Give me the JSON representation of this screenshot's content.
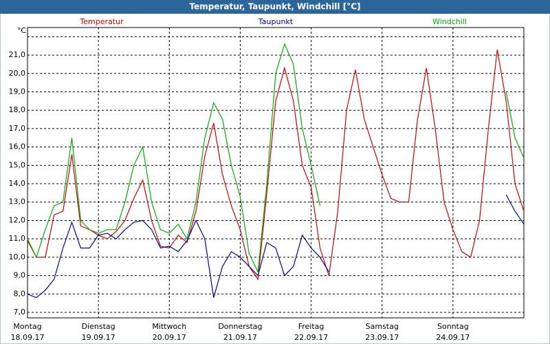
{
  "chart_data": {
    "type": "line",
    "title": "Temperatur, Taupunkt, Windchill [°C]",
    "y_unit": "°C",
    "x": [
      0,
      3,
      6,
      9,
      12,
      15,
      18,
      21,
      24,
      27,
      30,
      33,
      36,
      39,
      42,
      45,
      48,
      51,
      54,
      57,
      60,
      63,
      66,
      69,
      72,
      75,
      78,
      81,
      84,
      87,
      90,
      93,
      96,
      99,
      102,
      105,
      108,
      111,
      114,
      117,
      120,
      123,
      126,
      129,
      132,
      135,
      138,
      141,
      144,
      147,
      150,
      153,
      156,
      159,
      162,
      165,
      168
    ],
    "xlim": [
      0,
      168
    ],
    "xticks": [
      {
        "value": 0,
        "label": "Montag",
        "date": "18.09.17"
      },
      {
        "value": 24,
        "label": "Dienstag",
        "date": "19.09.17"
      },
      {
        "value": 48,
        "label": "Mittwoch",
        "date": "20.09.17"
      },
      {
        "value": 72,
        "label": "Donnerstag",
        "date": "21.09.17"
      },
      {
        "value": 96,
        "label": "Freitag",
        "date": "22.09.17"
      },
      {
        "value": 120,
        "label": "Samstag",
        "date": "23.09.17"
      },
      {
        "value": 144,
        "label": "Sonntag",
        "date": "24.09.17"
      }
    ],
    "ylim": [
      6.7,
      22.5
    ],
    "yticks": [
      {
        "value": 7,
        "label": "7,0"
      },
      {
        "value": 8,
        "label": "8,0"
      },
      {
        "value": 9,
        "label": "9,0"
      },
      {
        "value": 10,
        "label": "10,0"
      },
      {
        "value": 11,
        "label": "11,0"
      },
      {
        "value": 12,
        "label": "12,0"
      },
      {
        "value": 13,
        "label": "13,0"
      },
      {
        "value": 14,
        "label": "14,0"
      },
      {
        "value": 15,
        "label": "15,0"
      },
      {
        "value": 16,
        "label": "16,0"
      },
      {
        "value": 17,
        "label": "17,0"
      },
      {
        "value": 18,
        "label": "18,0"
      },
      {
        "value": 19,
        "label": "19,0"
      },
      {
        "value": 20,
        "label": "20,0"
      },
      {
        "value": 21,
        "label": "21,0"
      },
      {
        "value": 22,
        "label": ""
      }
    ],
    "grid": true,
    "series": [
      {
        "name": "Temperatur",
        "color": "#d00000",
        "values": [
          10.9,
          10.0,
          10.0,
          12.3,
          12.5,
          15.6,
          11.7,
          11.5,
          11.2,
          11.0,
          11.4,
          12.0,
          13.2,
          14.2,
          12.0,
          10.6,
          10.5,
          11.2,
          10.8,
          12.5,
          15.5,
          17.3,
          14.5,
          12.8,
          11.5,
          9.5,
          8.8,
          13.5,
          18.5,
          20.3,
          18.5,
          15.0,
          13.8,
          10.5,
          9.0,
          12.5,
          18.0,
          20.2,
          17.5,
          16.0,
          14.5,
          13.2,
          13.0,
          13.0,
          17.5,
          20.3,
          17.0,
          13.0,
          11.5,
          10.3,
          10.0,
          12.0,
          17.0,
          21.3,
          18.5,
          14.0,
          12.5
        ]
      },
      {
        "name": "Taupunkt",
        "color": "#0000a0",
        "values": [
          8.0,
          7.8,
          8.2,
          8.8,
          10.5,
          11.9,
          10.5,
          10.5,
          11.2,
          11.3,
          11.0,
          11.5,
          11.9,
          12.0,
          11.5,
          10.5,
          10.6,
          10.3,
          10.9,
          12.0,
          11.0,
          7.8,
          9.5,
          10.3,
          10.0,
          9.5,
          9.0,
          10.8,
          10.5,
          9.0,
          9.5,
          11.2,
          10.5,
          10.0,
          9.2,
          null,
          null,
          null,
          null,
          null,
          null,
          null,
          null,
          null,
          null,
          null,
          null,
          null,
          null,
          null,
          null,
          null,
          null,
          null,
          13.4,
          12.5,
          11.8
        ]
      },
      {
        "name": "Windchill",
        "color": "#00b000",
        "values": [
          11.0,
          10.0,
          11.5,
          12.8,
          13.0,
          16.5,
          12.0,
          11.5,
          11.3,
          11.5,
          11.5,
          13.0,
          15.0,
          16.0,
          13.0,
          11.5,
          11.3,
          11.8,
          11.0,
          13.0,
          16.5,
          18.4,
          17.5,
          15.0,
          13.3,
          10.2,
          9.2,
          14.0,
          20.0,
          21.6,
          20.5,
          17.0,
          15.0,
          12.8,
          null,
          null,
          null,
          null,
          null,
          null,
          null,
          null,
          null,
          null,
          null,
          null,
          null,
          null,
          null,
          null,
          null,
          null,
          null,
          null,
          19.0,
          16.5,
          15.4
        ]
      }
    ]
  }
}
